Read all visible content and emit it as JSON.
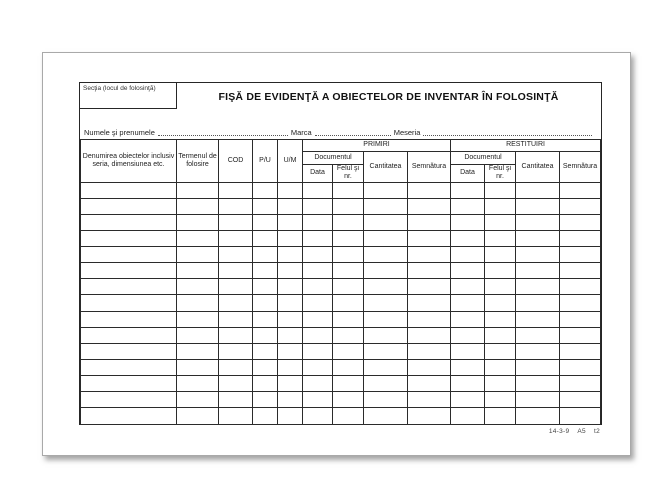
{
  "document": {
    "section_box_label": "Secţia (locul de folosinţă)",
    "title": "FIŞĂ DE EVIDENŢĂ A OBIECTELOR DE INVENTAR ÎN FOLOSINŢĂ",
    "name_line": {
      "name_label": "Numele şi prenumele",
      "marca_label": "Marca",
      "meseria_label": "Meseria"
    },
    "table": {
      "columns": [
        {
          "label": "Denumirea obiectelor inclusiv seria, dimensiunea etc."
        },
        {
          "label": "Termenul de folosire"
        },
        {
          "label": "COD"
        },
        {
          "label": "P/U"
        },
        {
          "label": "U/M"
        }
      ],
      "groups": {
        "primiri": "PRIMIRI",
        "restituiri": "RESTITUIRI"
      },
      "subheaders": {
        "documentul": "Documentul",
        "data": "Data",
        "felul": "Felul şi nr.",
        "cantitatea": "Cantitatea",
        "semnatura": "Semnătura"
      },
      "body_rows": 15,
      "body_columns": 13
    },
    "footer_code": {
      "form_code": "14-3-9",
      "format": "A5",
      "type": "t2"
    }
  },
  "colors": {
    "ink": "#1d1d1d",
    "grid_line": "#2b2b2b",
    "paper": "#ffffff"
  }
}
